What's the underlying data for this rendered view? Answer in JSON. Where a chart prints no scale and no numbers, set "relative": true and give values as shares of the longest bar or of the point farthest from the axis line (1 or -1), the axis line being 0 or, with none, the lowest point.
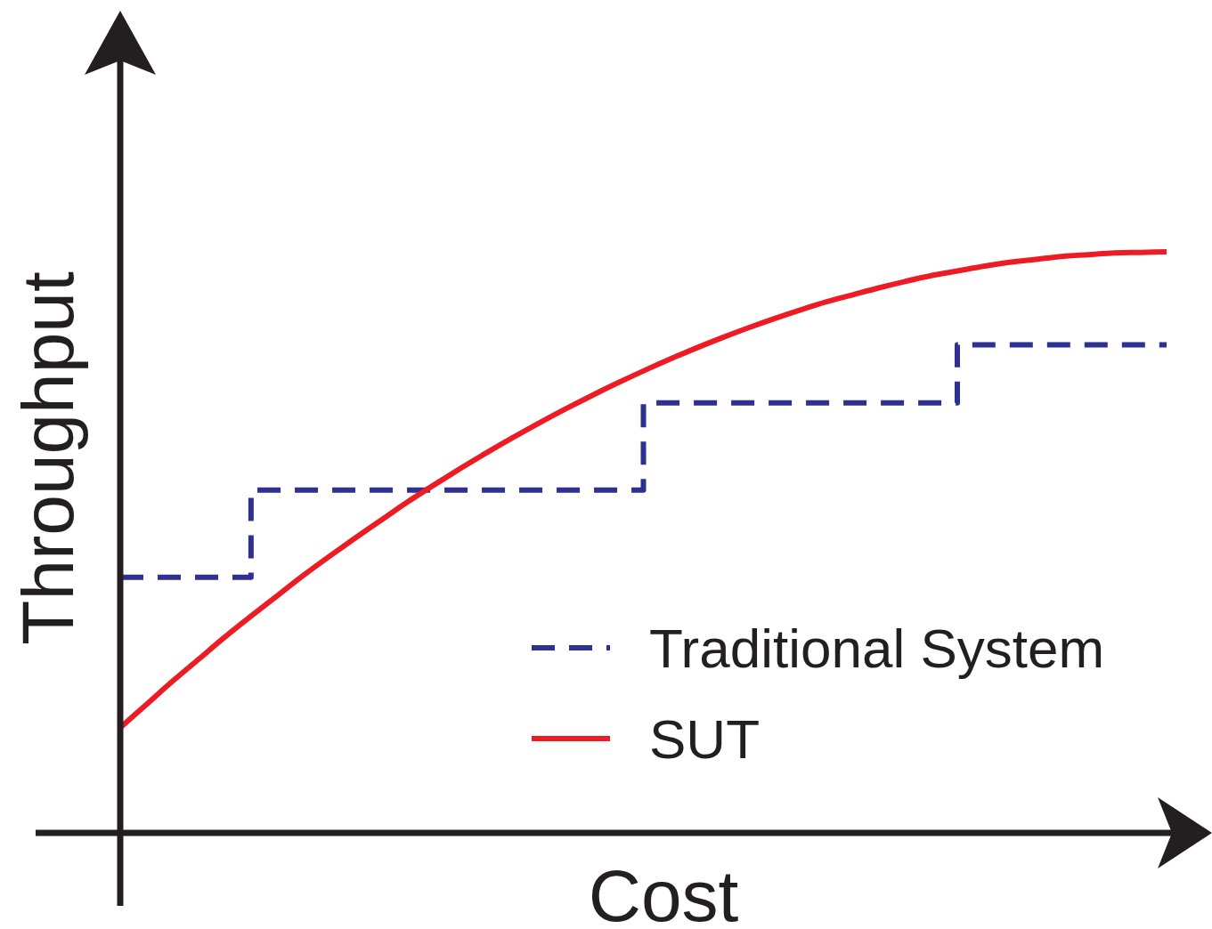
{
  "chart_data": {
    "type": "line",
    "xlabel": "Cost",
    "ylabel": "Throughput",
    "relative": true,
    "legend": "bottom right",
    "categories": [
      null,
      null,
      null,
      null,
      null,
      null,
      null,
      null,
      null,
      null,
      null,
      null,
      null,
      null,
      null,
      null,
      null,
      null,
      null,
      null,
      null,
      null,
      null,
      null,
      null,
      null,
      null,
      null,
      null,
      null,
      null,
      null,
      null,
      null,
      null,
      null,
      null,
      null,
      null,
      null,
      null
    ],
    "series": [
      {
        "name": "Traditional System",
        "type": "step",
        "line_style": "dashed",
        "color": "#2e3192",
        "values": [
          0.44,
          0.44,
          0.44,
          0.44,
          0.44,
          0.59,
          0.59,
          0.59,
          0.59,
          0.59,
          0.59,
          0.59,
          0.59,
          0.59,
          0.59,
          0.59,
          0.59,
          0.59,
          0.59,
          0.59,
          0.74,
          0.74,
          0.74,
          0.74,
          0.74,
          0.74,
          0.74,
          0.74,
          0.74,
          0.74,
          0.74,
          0.74,
          0.84,
          0.84,
          0.84,
          0.84,
          0.84,
          0.84,
          0.84,
          0.84,
          0.84
        ]
      },
      {
        "name": "SUT",
        "line_style": "solid",
        "color": "#ed1c24",
        "values": [
          0.181,
          0.221,
          0.261,
          0.299,
          0.337,
          0.373,
          0.408,
          0.443,
          0.476,
          0.508,
          0.539,
          0.57,
          0.599,
          0.627,
          0.654,
          0.68,
          0.705,
          0.729,
          0.752,
          0.774,
          0.795,
          0.815,
          0.834,
          0.852,
          0.869,
          0.885,
          0.9,
          0.914,
          0.926,
          0.938,
          0.949,
          0.959,
          0.967,
          0.975,
          0.982,
          0.987,
          0.992,
          0.995,
          0.998,
          0.999,
          1.0
        ]
      }
    ]
  }
}
